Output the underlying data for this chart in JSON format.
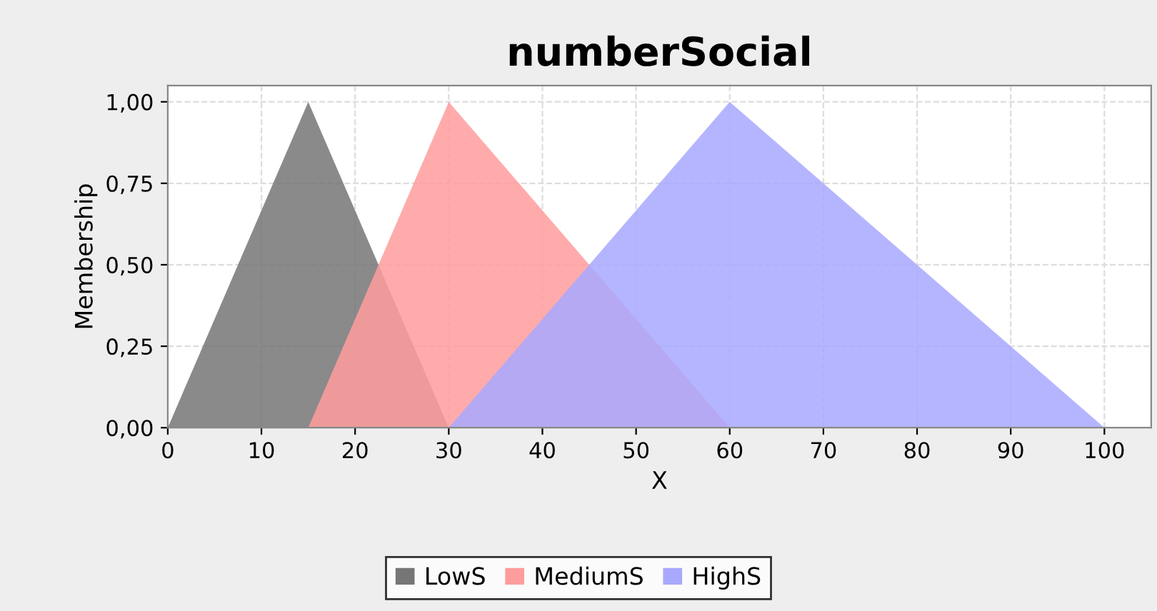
{
  "chart_data": {
    "type": "area",
    "title": "numberSocial",
    "xlabel": "X",
    "ylabel": "Membership",
    "series": [
      {
        "name": "LowS",
        "color": "#767676",
        "x": [
          0,
          15,
          30
        ],
        "values": [
          0,
          1,
          0
        ]
      },
      {
        "name": "MediumS",
        "color": "#ff9c9c",
        "x": [
          15,
          30,
          60
        ],
        "values": [
          0,
          1,
          0
        ]
      },
      {
        "name": "HighS",
        "color": "#a8a8ff",
        "x": [
          30,
          60,
          100
        ],
        "values": [
          0,
          1,
          0
        ]
      }
    ],
    "xlim": [
      0,
      105
    ],
    "ylim": [
      0,
      1.05
    ],
    "xticks": [
      0,
      10,
      20,
      30,
      40,
      50,
      60,
      70,
      80,
      90,
      100
    ],
    "yticks": [
      {
        "value": 0,
        "label": "0,00"
      },
      {
        "value": 0.25,
        "label": "0,25"
      },
      {
        "value": 0.5,
        "label": "0,50"
      },
      {
        "value": 0.75,
        "label": "0,75"
      },
      {
        "value": 1,
        "label": "1,00"
      }
    ],
    "grid": true,
    "legend": "bottom"
  }
}
